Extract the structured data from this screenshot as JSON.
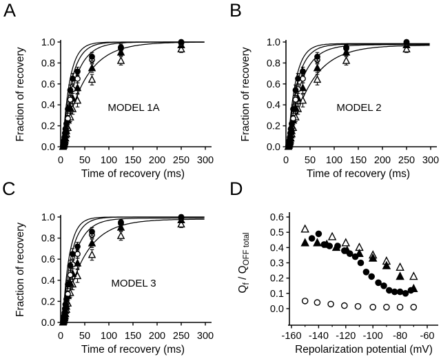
{
  "figure": {
    "background": "#ffffff",
    "ink_color": "#000000",
    "description": "Four-panel scientific figure: recovery kinetics model fits (A, B, C) and charge ratio vs repolarization potential (D)"
  },
  "chart_data": [
    {
      "type": "line",
      "panel_letter": "A",
      "model_label": "MODEL 1A",
      "xlabel": "Time of recovery (ms)",
      "ylabel": "Fraction of recovery",
      "xlim": [
        0,
        300
      ],
      "ylim": [
        0,
        1.0
      ],
      "xtick_vals": [
        0,
        50,
        100,
        150,
        200,
        250,
        300
      ],
      "xtick_labels": [
        "0",
        "50",
        "100",
        "150",
        "200",
        "250",
        "300"
      ],
      "ytick_vals": [
        0,
        0.2,
        0.4,
        0.6,
        0.8,
        1.0
      ],
      "ytick_labels": [
        "0.0",
        "0.2",
        "0.4",
        "0.6",
        "0.8",
        "1.0"
      ],
      "grid": false,
      "legend": "none",
      "series_source": "recovery_series",
      "fit_curves": [
        {
          "t0": 4,
          "tau": 15,
          "amp": 1.0
        },
        {
          "t0": 4,
          "tau": 19,
          "amp": 1.0
        },
        {
          "t0": 4,
          "tau": 26,
          "amp": 1.0
        },
        {
          "t0": 4,
          "tau": 45,
          "amp": 1.0
        }
      ]
    },
    {
      "type": "line",
      "panel_letter": "B",
      "model_label": "MODEL 2",
      "xlabel": "Time of recovery (ms)",
      "ylabel": "Fraction of recovery",
      "xlim": [
        0,
        300
      ],
      "ylim": [
        0,
        1.0
      ],
      "xtick_vals": [
        0,
        50,
        100,
        150,
        200,
        250,
        300
      ],
      "xtick_labels": [
        "0",
        "50",
        "100",
        "150",
        "200",
        "250",
        "300"
      ],
      "ytick_vals": [
        0,
        0.2,
        0.4,
        0.6,
        0.8,
        1.0
      ],
      "ytick_labels": [
        "0.0",
        "0.2",
        "0.4",
        "0.6",
        "0.8",
        "1.0"
      ],
      "grid": false,
      "legend": "none",
      "series_source": "recovery_series",
      "fit_curves": [
        {
          "t0": 4,
          "tau": 16,
          "amp": 0.985
        },
        {
          "t0": 4,
          "tau": 20,
          "amp": 0.98
        },
        {
          "t0": 4,
          "tau": 28,
          "amp": 0.975
        },
        {
          "t0": 4,
          "tau": 48,
          "amp": 0.97
        }
      ]
    },
    {
      "type": "line",
      "panel_letter": "C",
      "model_label": "MODEL 3",
      "xlabel": "Time of recovery (ms)",
      "ylabel": "Fraction of recovery",
      "xlim": [
        0,
        300
      ],
      "ylim": [
        0,
        1.0
      ],
      "xtick_vals": [
        0,
        50,
        100,
        150,
        200,
        250,
        300
      ],
      "xtick_labels": [
        "0",
        "50",
        "100",
        "150",
        "200",
        "250",
        "300"
      ],
      "ytick_vals": [
        0,
        0.2,
        0.4,
        0.6,
        0.8,
        1.0
      ],
      "ytick_labels": [
        "0.0",
        "0.2",
        "0.4",
        "0.6",
        "0.8",
        "1.0"
      ],
      "grid": false,
      "legend": "none",
      "series_source": "recovery_series",
      "fit_curves": [
        {
          "t0": 4,
          "tau": 14,
          "amp": 1.0
        },
        {
          "t0": 4,
          "tau": 18,
          "amp": 1.0
        },
        {
          "t0": 4,
          "tau": 25,
          "amp": 0.99
        },
        {
          "t0": 4,
          "tau": 44,
          "amp": 0.98
        }
      ]
    },
    {
      "type": "scatter",
      "panel_letter": "D",
      "model_label": "",
      "xlabel": "Repolarization potential (mV)",
      "ylabel_parts": [
        {
          "text": "Q",
          "sub": false
        },
        {
          "text": "f",
          "sub": true
        },
        {
          "text": " / Q",
          "sub": false
        },
        {
          "text": "OFF",
          "sub": true
        },
        {
          "text": " total",
          "sub": true
        }
      ],
      "xlim": [
        -165,
        -55
      ],
      "ylim": [
        0,
        0.6
      ],
      "xtick_vals": [
        -160,
        -140,
        -120,
        -100,
        -80,
        -60
      ],
      "xtick_labels": [
        "-160",
        "-140",
        "-120",
        "-100",
        "-80",
        "-60"
      ],
      "xtick_minor_vals": [
        -150,
        -130,
        -110,
        -90,
        -70
      ],
      "ytick_vals": [
        0,
        0.1,
        0.2,
        0.3,
        0.4,
        0.5,
        0.6
      ],
      "ytick_labels": [
        "0.0",
        "0.1",
        "0.2",
        "0.3",
        "0.4",
        "0.5",
        "0.6"
      ],
      "grid": false,
      "legend": "none",
      "series": [
        {
          "marker": "open-triangle",
          "x": [
            -150,
            -130,
            -120,
            -110,
            -100,
            -90,
            -80,
            -70
          ],
          "y": [
            0.52,
            0.47,
            0.43,
            0.4,
            0.35,
            0.31,
            0.27,
            0.21
          ]
        },
        {
          "marker": "filled-triangle",
          "x": [
            -150,
            -141,
            -134,
            -127,
            -119,
            -110,
            -100,
            -90,
            -80,
            -70
          ],
          "y": [
            0.43,
            0.43,
            0.42,
            0.4,
            0.38,
            0.36,
            0.33,
            0.28,
            0.21,
            0.13
          ]
        },
        {
          "marker": "open-circle",
          "x": [
            -150,
            -141,
            -131,
            -121,
            -111,
            -100,
            -90,
            -80,
            -70
          ],
          "y": [
            0.05,
            0.04,
            0.03,
            0.02,
            0.015,
            0.01,
            0.01,
            0.01,
            0.01
          ]
        },
        {
          "marker": "filled-circle",
          "x": [
            -145,
            -140,
            -136,
            -132,
            -126,
            -121,
            -117,
            -113,
            -109,
            -105,
            -101,
            -96,
            -92,
            -88,
            -84,
            -80,
            -76,
            -72
          ],
          "y": [
            0.46,
            0.49,
            0.42,
            0.41,
            0.41,
            0.38,
            0.36,
            0.34,
            0.3,
            0.24,
            0.21,
            0.17,
            0.15,
            0.12,
            0.11,
            0.11,
            0.1,
            0.12
          ]
        }
      ]
    }
  ],
  "recovery_series": {
    "t": [
      5,
      6,
      7,
      8,
      9,
      10,
      12,
      15,
      20,
      25,
      35,
      65,
      125,
      250
    ],
    "series": [
      {
        "marker": "open-triangle",
        "y": [
          0.0,
          0.01,
          0.02,
          0.04,
          0.06,
          0.08,
          0.12,
          0.18,
          0.28,
          0.36,
          0.44,
          0.64,
          0.82,
          0.93
        ],
        "err": [
          0.01,
          0.01,
          0.01,
          0.01,
          0.01,
          0.02,
          0.02,
          0.03,
          0.04,
          0.05,
          0.06,
          0.05,
          0.04,
          0.03
        ]
      },
      {
        "marker": "filled-triangle",
        "y": [
          0.0,
          0.01,
          0.03,
          0.05,
          0.08,
          0.11,
          0.15,
          0.25,
          0.37,
          0.46,
          0.56,
          0.75,
          0.9,
          0.97
        ],
        "err": [
          0.01,
          0.01,
          0.01,
          0.01,
          0.02,
          0.02,
          0.02,
          0.04,
          0.05,
          0.05,
          0.05,
          0.04,
          0.03,
          0.02
        ]
      },
      {
        "marker": "open-circle",
        "y": [
          0.01,
          0.02,
          0.04,
          0.07,
          0.1,
          0.13,
          0.18,
          0.27,
          0.45,
          0.55,
          0.65,
          0.83,
          0.94,
          0.99
        ],
        "err": [
          0.01,
          0.01,
          0.01,
          0.01,
          0.02,
          0.02,
          0.02,
          0.03,
          0.04,
          0.04,
          0.04,
          0.03,
          0.03,
          0.02
        ]
      },
      {
        "marker": "filled-circle",
        "y": [
          0.01,
          0.03,
          0.06,
          0.09,
          0.13,
          0.17,
          0.22,
          0.36,
          0.54,
          0.65,
          0.72,
          0.86,
          0.95,
          1.0
        ],
        "err": [
          0.01,
          0.01,
          0.01,
          0.02,
          0.02,
          0.02,
          0.03,
          0.04,
          0.05,
          0.05,
          0.04,
          0.04,
          0.03,
          0.02
        ]
      }
    ]
  }
}
